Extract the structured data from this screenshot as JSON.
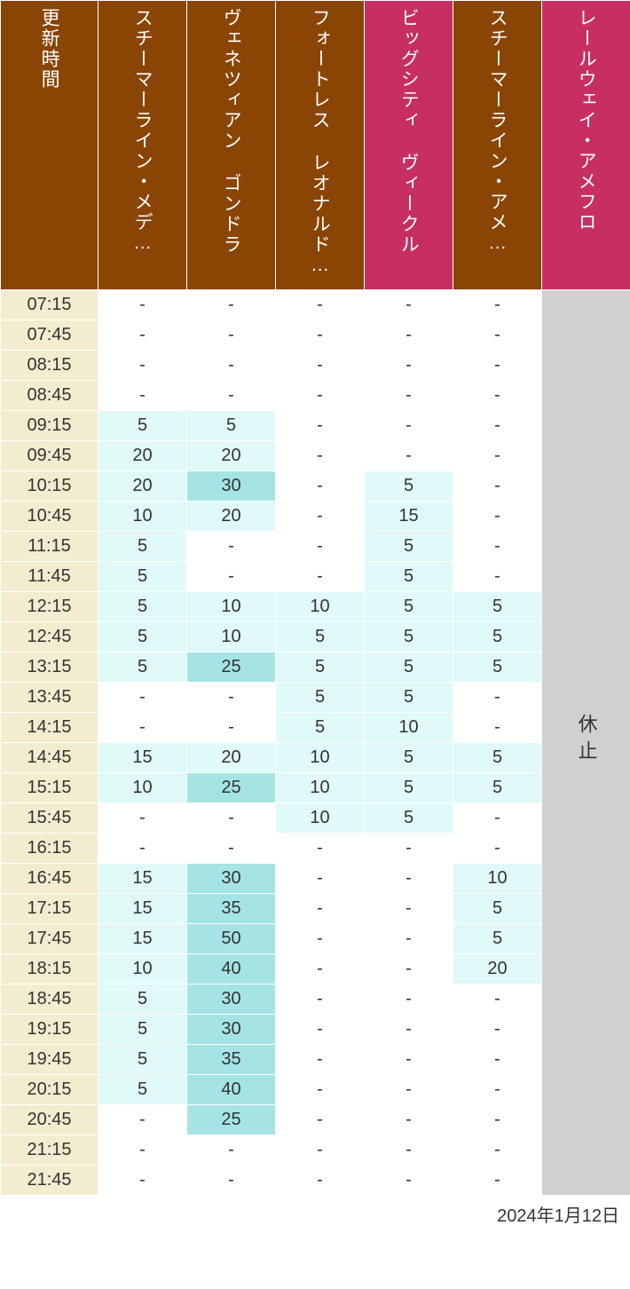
{
  "header": {
    "time_label": "更新時間",
    "columns": [
      "スチーマーライン・メデ…",
      "ヴェネツィアン ゴンドラ",
      "フォートレス レオナルド…",
      "ビッグシティ ヴィークル",
      "スチーマーライン・アメ…",
      "レールウェイ・アメフロ"
    ]
  },
  "colors": {
    "header_brown": "#8a4504",
    "header_pink": "#c72f63",
    "time_bg": "#f4ecce",
    "row_white": "#ffffff",
    "cell_light_cyan": "#e0f9f9",
    "cell_mid_cyan": "#a5e4e4",
    "closed_bg": "#d0d0d0",
    "text": "#333333"
  },
  "header_colors": [
    "#8a4504",
    "#8a4504",
    "#8a4504",
    "#8a4504",
    "#c72f63",
    "#8a4504",
    "#c72f63"
  ],
  "thresholds": {
    "light_min": 1,
    "mid_min": 25
  },
  "closed_label": "休止",
  "footer_date": "2024年1月12日",
  "times": [
    "07:15",
    "07:45",
    "08:15",
    "08:45",
    "09:15",
    "09:45",
    "10:15",
    "10:45",
    "11:15",
    "11:45",
    "12:15",
    "12:45",
    "13:15",
    "13:45",
    "14:15",
    "14:45",
    "15:15",
    "15:45",
    "16:15",
    "16:45",
    "17:15",
    "17:45",
    "18:15",
    "18:45",
    "19:15",
    "19:45",
    "20:15",
    "20:45",
    "21:15",
    "21:45"
  ],
  "data": [
    [
      null,
      null,
      null,
      null,
      null
    ],
    [
      null,
      null,
      null,
      null,
      null
    ],
    [
      null,
      null,
      null,
      null,
      null
    ],
    [
      null,
      null,
      null,
      null,
      null
    ],
    [
      5,
      5,
      null,
      null,
      null
    ],
    [
      20,
      20,
      null,
      null,
      null
    ],
    [
      20,
      30,
      null,
      5,
      null
    ],
    [
      10,
      20,
      null,
      15,
      null
    ],
    [
      5,
      null,
      null,
      5,
      null
    ],
    [
      5,
      null,
      null,
      5,
      null
    ],
    [
      5,
      10,
      10,
      5,
      5
    ],
    [
      5,
      10,
      5,
      5,
      5
    ],
    [
      5,
      25,
      5,
      5,
      5
    ],
    [
      null,
      null,
      5,
      5,
      null
    ],
    [
      null,
      null,
      5,
      10,
      null
    ],
    [
      15,
      20,
      10,
      5,
      5
    ],
    [
      10,
      25,
      10,
      5,
      5
    ],
    [
      null,
      null,
      10,
      5,
      null
    ],
    [
      null,
      null,
      null,
      null,
      null
    ],
    [
      15,
      30,
      null,
      null,
      10
    ],
    [
      15,
      35,
      null,
      null,
      5
    ],
    [
      15,
      50,
      null,
      null,
      5
    ],
    [
      10,
      40,
      null,
      null,
      20
    ],
    [
      5,
      30,
      null,
      null,
      null
    ],
    [
      5,
      30,
      null,
      null,
      null
    ],
    [
      5,
      35,
      null,
      null,
      null
    ],
    [
      5,
      40,
      null,
      null,
      null
    ],
    [
      null,
      25,
      null,
      null,
      null
    ],
    [
      null,
      null,
      null,
      null,
      null
    ],
    [
      null,
      null,
      null,
      null,
      null
    ]
  ],
  "last_column_closed": true
}
